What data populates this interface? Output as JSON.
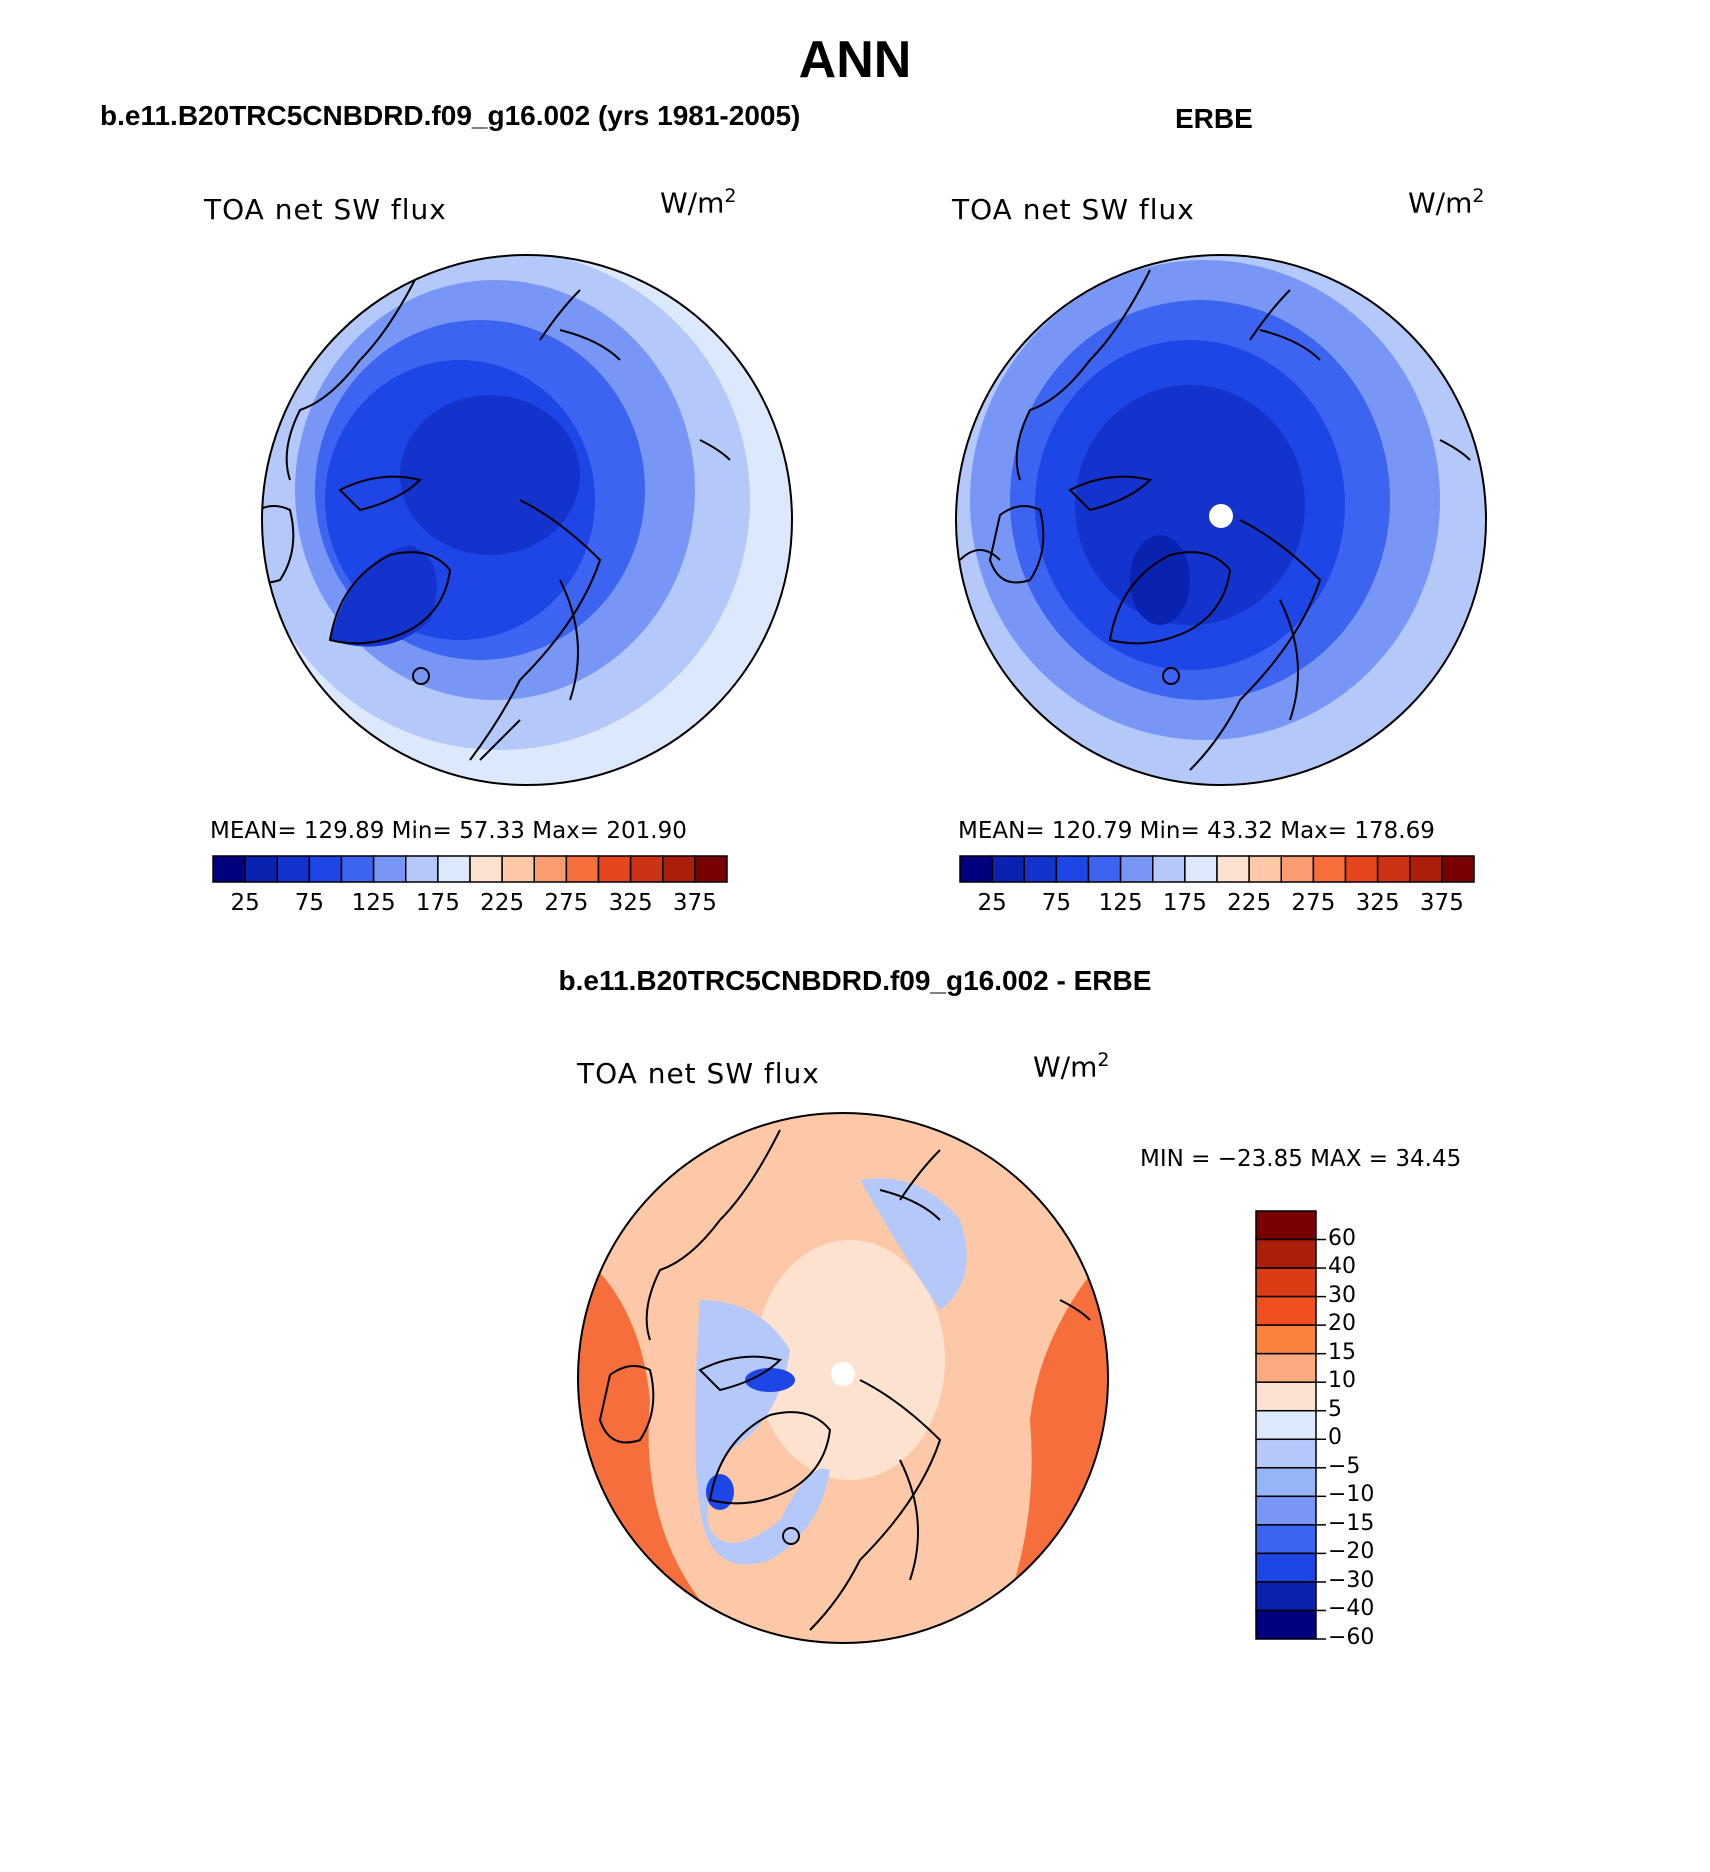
{
  "main_title": "ANN",
  "panels": {
    "left": {
      "header": "b.e11.B20TRC5CNBDRD.f09_g16.002 (yrs 1981-2005)",
      "variable": "TOA net SW flux",
      "units": "W/m",
      "units_exp": "2",
      "stats": "MEAN= 129.89   Min=   57.33   Max= 201.90"
    },
    "right": {
      "header": "ERBE",
      "variable": "TOA net SW flux",
      "units": "W/m",
      "units_exp": "2",
      "stats": "MEAN= 120.79   Min=   43.32   Max= 178.69"
    },
    "diff": {
      "header": "b.e11.B20TRC5CNBDRD.f09_g16.002 - ERBE",
      "variable": "TOA net SW flux",
      "units": "W/m",
      "units_exp": "2",
      "minmax": "MIN = −23.85 MAX =   34.45"
    }
  },
  "abs_colorbar": {
    "colors": [
      "#00007f",
      "#0a22b0",
      "#1432cc",
      "#1e46e6",
      "#3c64f0",
      "#7896f5",
      "#b4c8fa",
      "#dce8fc",
      "#fde3cf",
      "#fcc8a8",
      "#fa9b70",
      "#f56e3c",
      "#e6461e",
      "#cc3214",
      "#aa1e0a",
      "#780000"
    ],
    "labels": [
      "25",
      "75",
      "125",
      "175",
      "225",
      "275",
      "325",
      "375"
    ]
  },
  "diff_colorbar": {
    "colors": [
      "#780000",
      "#aa1e0a",
      "#dc3c14",
      "#f0501e",
      "#fa823c",
      "#fcaa82",
      "#fde3cf",
      "#dce8fc",
      "#b4c8fa",
      "#96b4f8",
      "#7896f5",
      "#3c64f0",
      "#1e46e6",
      "#0a22b0",
      "#00007f"
    ],
    "labels": [
      "60",
      "40",
      "30",
      "20",
      "15",
      "10",
      "5",
      "0",
      "−5",
      "−10",
      "−15",
      "−20",
      "−30",
      "−40",
      "−60"
    ]
  },
  "map_colors": {
    "left": [
      "#dce8fc",
      "#b4c8fa",
      "#7896f5",
      "#3c64f0",
      "#1e46e6",
      "#1432cc"
    ],
    "right": [
      "#b4c8fa",
      "#7896f5",
      "#3c64f0",
      "#1e46e6",
      "#1432cc",
      "#0a22b0"
    ],
    "diff_bg": "#fcc8a8",
    "diff_center": "#fde3cf",
    "diff_warm": "#f56e3c",
    "diff_cool": "#b4c8fa",
    "diff_blue": "#1e46e6"
  }
}
